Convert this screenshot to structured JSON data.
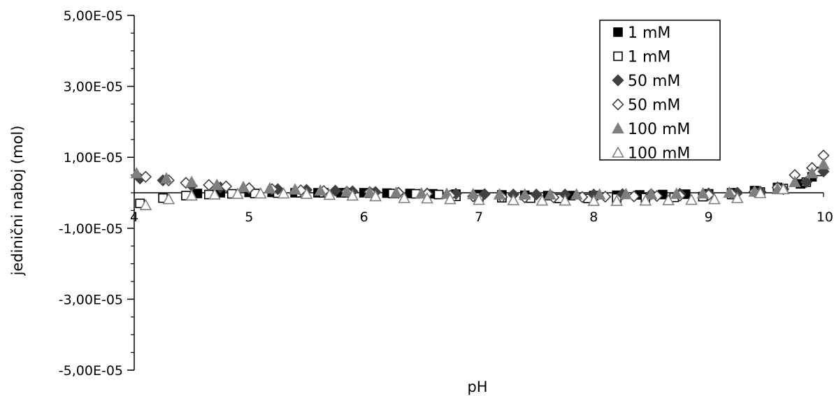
{
  "chart_data": {
    "type": "scatter",
    "xlabel": "pH",
    "ylabel": "jedinični naboj (mol)",
    "xlim": [
      4,
      10
    ],
    "ylim": [
      -5e-05,
      5e-05
    ],
    "x_ticks": [
      {
        "value": 4,
        "label": "4"
      },
      {
        "value": 5,
        "label": "5"
      },
      {
        "value": 6,
        "label": "6"
      },
      {
        "value": 7,
        "label": "7"
      },
      {
        "value": 8,
        "label": "8"
      },
      {
        "value": 9,
        "label": "9"
      },
      {
        "value": 10,
        "label": "10"
      }
    ],
    "y_ticks": [
      {
        "value": 5e-05,
        "label": "5,00E-05"
      },
      {
        "value": 3e-05,
        "label": "3,00E-05"
      },
      {
        "value": 1e-05,
        "label": "1,00E-05"
      },
      {
        "value": -1e-05,
        "label": "-1,00E-05"
      },
      {
        "value": -3e-05,
        "label": "-3,00E-05"
      },
      {
        "value": -5e-05,
        "label": "-5,00E-05"
      }
    ],
    "y_minor_step": 5e-06,
    "grid": false,
    "legend_position": "top-right",
    "series": [
      {
        "name": "1 mM",
        "marker": "square",
        "filled": true,
        "color": "#000000",
        "x": [
          4.55,
          4.75,
          5.0,
          5.2,
          5.4,
          5.6,
          5.8,
          6.0,
          6.2,
          6.4,
          6.6,
          6.8,
          7.0,
          7.2,
          7.4,
          7.6,
          7.8,
          8.0,
          8.2,
          8.4,
          8.6,
          8.8,
          9.0,
          9.2,
          9.4,
          9.6,
          9.8,
          9.9
        ],
        "y": [
          -2e-07,
          0,
          1e-07,
          1e-07,
          0,
          0,
          0,
          0,
          -1e-07,
          -2e-07,
          -3e-07,
          -4e-07,
          -5e-07,
          -6e-07,
          -7e-07,
          -8e-07,
          -8e-07,
          -8e-07,
          -7e-07,
          -6e-07,
          -5e-07,
          -4e-07,
          -3e-07,
          0,
          6e-07,
          1.5e-06,
          2.5e-06,
          4.5e-06
        ]
      },
      {
        "name": "1 mM",
        "marker": "square",
        "filled": false,
        "color": "#000000",
        "x": [
          4.05,
          4.25,
          4.45,
          4.65,
          4.85,
          5.05,
          5.25,
          5.45,
          5.65,
          5.85,
          6.05,
          6.25,
          6.45,
          6.65,
          6.8,
          7.0,
          7.2,
          7.45,
          7.7,
          7.95,
          8.2,
          8.45,
          8.7,
          8.95,
          9.2,
          9.45,
          9.65,
          9.85,
          9.95
        ],
        "y": [
          -3e-06,
          -1.5e-06,
          -8e-07,
          -5e-07,
          -3e-07,
          -2e-07,
          -1e-07,
          0,
          0,
          0,
          -1e-07,
          -2e-07,
          -3e-07,
          -5e-07,
          -1e-06,
          -1.2e-06,
          -1.4e-06,
          -1.5e-06,
          -1.6e-06,
          -1.6e-06,
          -1.5e-06,
          -1.4e-06,
          -1.3e-06,
          -1.1e-06,
          -5e-07,
          2e-07,
          1.2e-06,
          3e-06,
          6e-06
        ]
      },
      {
        "name": "50 mM",
        "marker": "diamond",
        "filled": true,
        "color": "#404040",
        "x": [
          4.05,
          4.25,
          4.5,
          4.75,
          5.0,
          5.25,
          5.5,
          5.75,
          5.9,
          6.1,
          6.3,
          6.55,
          6.8,
          7.05,
          7.3,
          7.5,
          7.75,
          8.0,
          8.25,
          8.5,
          8.75,
          9.0,
          9.25,
          9.45,
          9.65,
          9.85,
          10.0
        ],
        "y": [
          4e-06,
          3.5e-06,
          2e-06,
          1.5e-06,
          1.2e-06,
          1e-06,
          8e-07,
          6e-07,
          4e-07,
          2e-07,
          0,
          -2e-07,
          -3e-07,
          -4e-07,
          -5e-07,
          -5e-07,
          -5e-07,
          -5e-07,
          -4e-07,
          -4e-07,
          -3e-07,
          -2e-07,
          0,
          3e-07,
          1e-06,
          3e-06,
          6e-06
        ]
      },
      {
        "name": "50 mM",
        "marker": "diamond",
        "filled": false,
        "color": "#404040",
        "x": [
          4.1,
          4.3,
          4.45,
          4.65,
          4.8,
          5.0,
          5.2,
          5.45,
          5.65,
          5.85,
          6.05,
          6.3,
          6.55,
          6.75,
          6.95,
          7.2,
          7.4,
          7.65,
          7.9,
          8.1,
          8.35,
          8.55,
          8.75,
          9.0,
          9.2,
          9.4,
          9.6,
          9.75,
          9.9,
          10.0
        ],
        "y": [
          4.5e-06,
          3.5e-06,
          2.8e-06,
          2.2e-06,
          1.8e-06,
          1.3e-06,
          1e-06,
          7e-07,
          5e-07,
          3e-07,
          2e-07,
          0,
          -3e-07,
          -8e-07,
          -1e-06,
          -1.2e-06,
          -1.3e-06,
          -1.3e-06,
          -1.2e-06,
          -1.1e-06,
          -1e-06,
          -9e-07,
          -8e-07,
          -6e-07,
          -3e-07,
          3e-07,
          1.5e-06,
          5e-06,
          7e-06,
          1.05e-05
        ]
      },
      {
        "name": "100 mM",
        "marker": "triangle",
        "filled": true,
        "color": "#7f7f7f",
        "x": [
          4.02,
          4.28,
          4.5,
          4.72,
          4.95,
          5.18,
          5.4,
          5.62,
          5.85,
          6.05,
          6.28,
          6.5,
          6.72,
          6.95,
          7.18,
          7.4,
          7.62,
          7.85,
          8.05,
          8.28,
          8.5,
          8.72,
          8.95,
          9.18,
          9.4,
          9.6,
          9.75,
          9.9,
          10.0
        ],
        "y": [
          5.5e-06,
          4e-06,
          3e-06,
          2.2e-06,
          1.6e-06,
          1.2e-06,
          9e-07,
          6e-07,
          3e-07,
          1e-07,
          0,
          -2e-07,
          -3e-07,
          -4e-07,
          -5e-07,
          -5e-07,
          -5e-07,
          -5e-07,
          -5e-07,
          -4e-07,
          -4e-07,
          -3e-07,
          -2e-07,
          0,
          3e-07,
          1e-06,
          3e-06,
          5.5e-06,
          8e-06
        ]
      },
      {
        "name": "100 mM",
        "marker": "triangle",
        "filled": false,
        "color": "#7f7f7f",
        "x": [
          4.1,
          4.3,
          4.5,
          4.7,
          4.9,
          5.1,
          5.3,
          5.5,
          5.7,
          5.9,
          6.1,
          6.35,
          6.55,
          6.75,
          7.0,
          7.3,
          7.55,
          7.75,
          8.0,
          8.2,
          8.45,
          8.65,
          8.85,
          9.05,
          9.25,
          9.45,
          9.65
        ],
        "y": [
          -3.5e-06,
          -1.8e-06,
          -8e-07,
          -5e-07,
          -3e-07,
          -2e-07,
          -2e-07,
          -3e-07,
          -6e-07,
          -8e-07,
          -1e-06,
          -1.5e-06,
          -1.6e-06,
          -1.8e-06,
          -2e-06,
          -2.1e-06,
          -2.2e-06,
          -2.2e-06,
          -2.3e-06,
          -2.3e-06,
          -2.2e-06,
          -2.1e-06,
          -2e-06,
          -1.8e-06,
          -1.5e-06,
          -1e-07,
          1e-06
        ]
      }
    ]
  }
}
